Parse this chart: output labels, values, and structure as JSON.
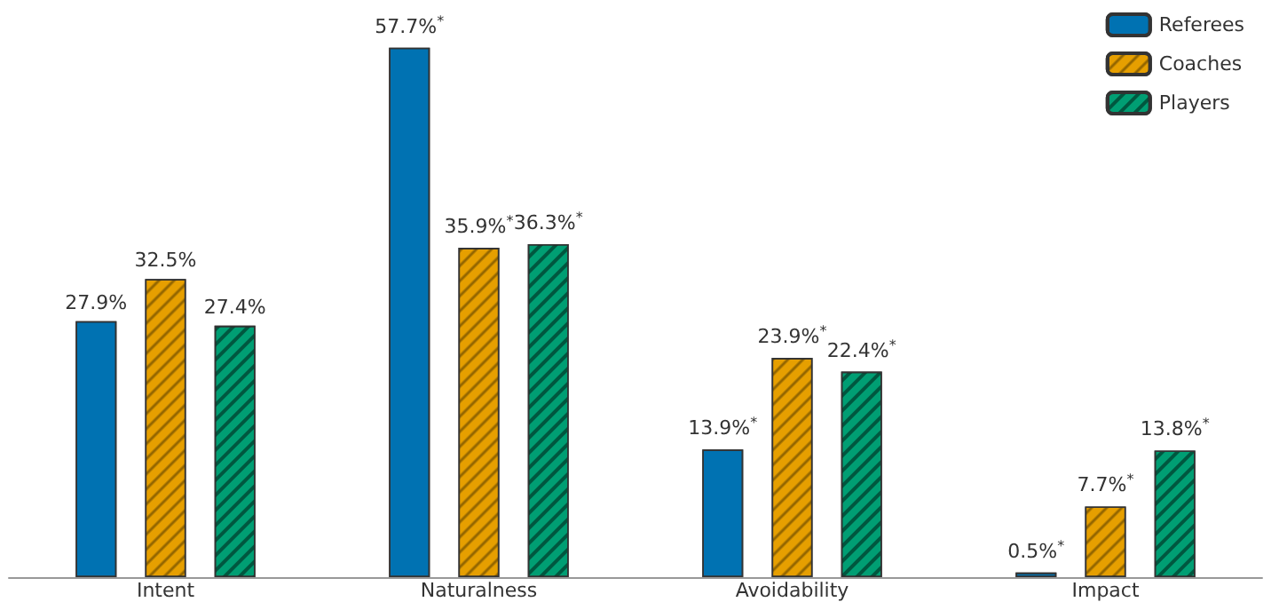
{
  "chart_data": {
    "type": "bar",
    "categories": [
      "Intent",
      "Naturalness",
      "Avoidability",
      "Impact"
    ],
    "series": [
      {
        "name": "Referees",
        "color": "#0072b2",
        "values": [
          27.9,
          57.7,
          13.9,
          0.5
        ],
        "value_labels": [
          "27.9%",
          "57.7%$^{*}$",
          "13.9%$^{*}$",
          "0.5%$^{*}$"
        ]
      },
      {
        "name": "Coaches",
        "color": "#e69f00",
        "values": [
          32.5,
          35.9,
          23.9,
          7.7
        ],
        "value_labels": [
          "32.5%",
          "35.9%$^{*}$",
          "23.9%$^{*}$",
          "7.7%$^{*}$"
        ]
      },
      {
        "name": "Players",
        "color": "#009e73",
        "values": [
          27.4,
          36.3,
          22.4,
          13.8
        ],
        "value_labels": [
          "27.4%",
          "36.3%$^{*}$",
          "22.4%$^{*}$",
          "13.8%$^{*}$"
        ]
      }
    ],
    "legend": "top right"
  }
}
